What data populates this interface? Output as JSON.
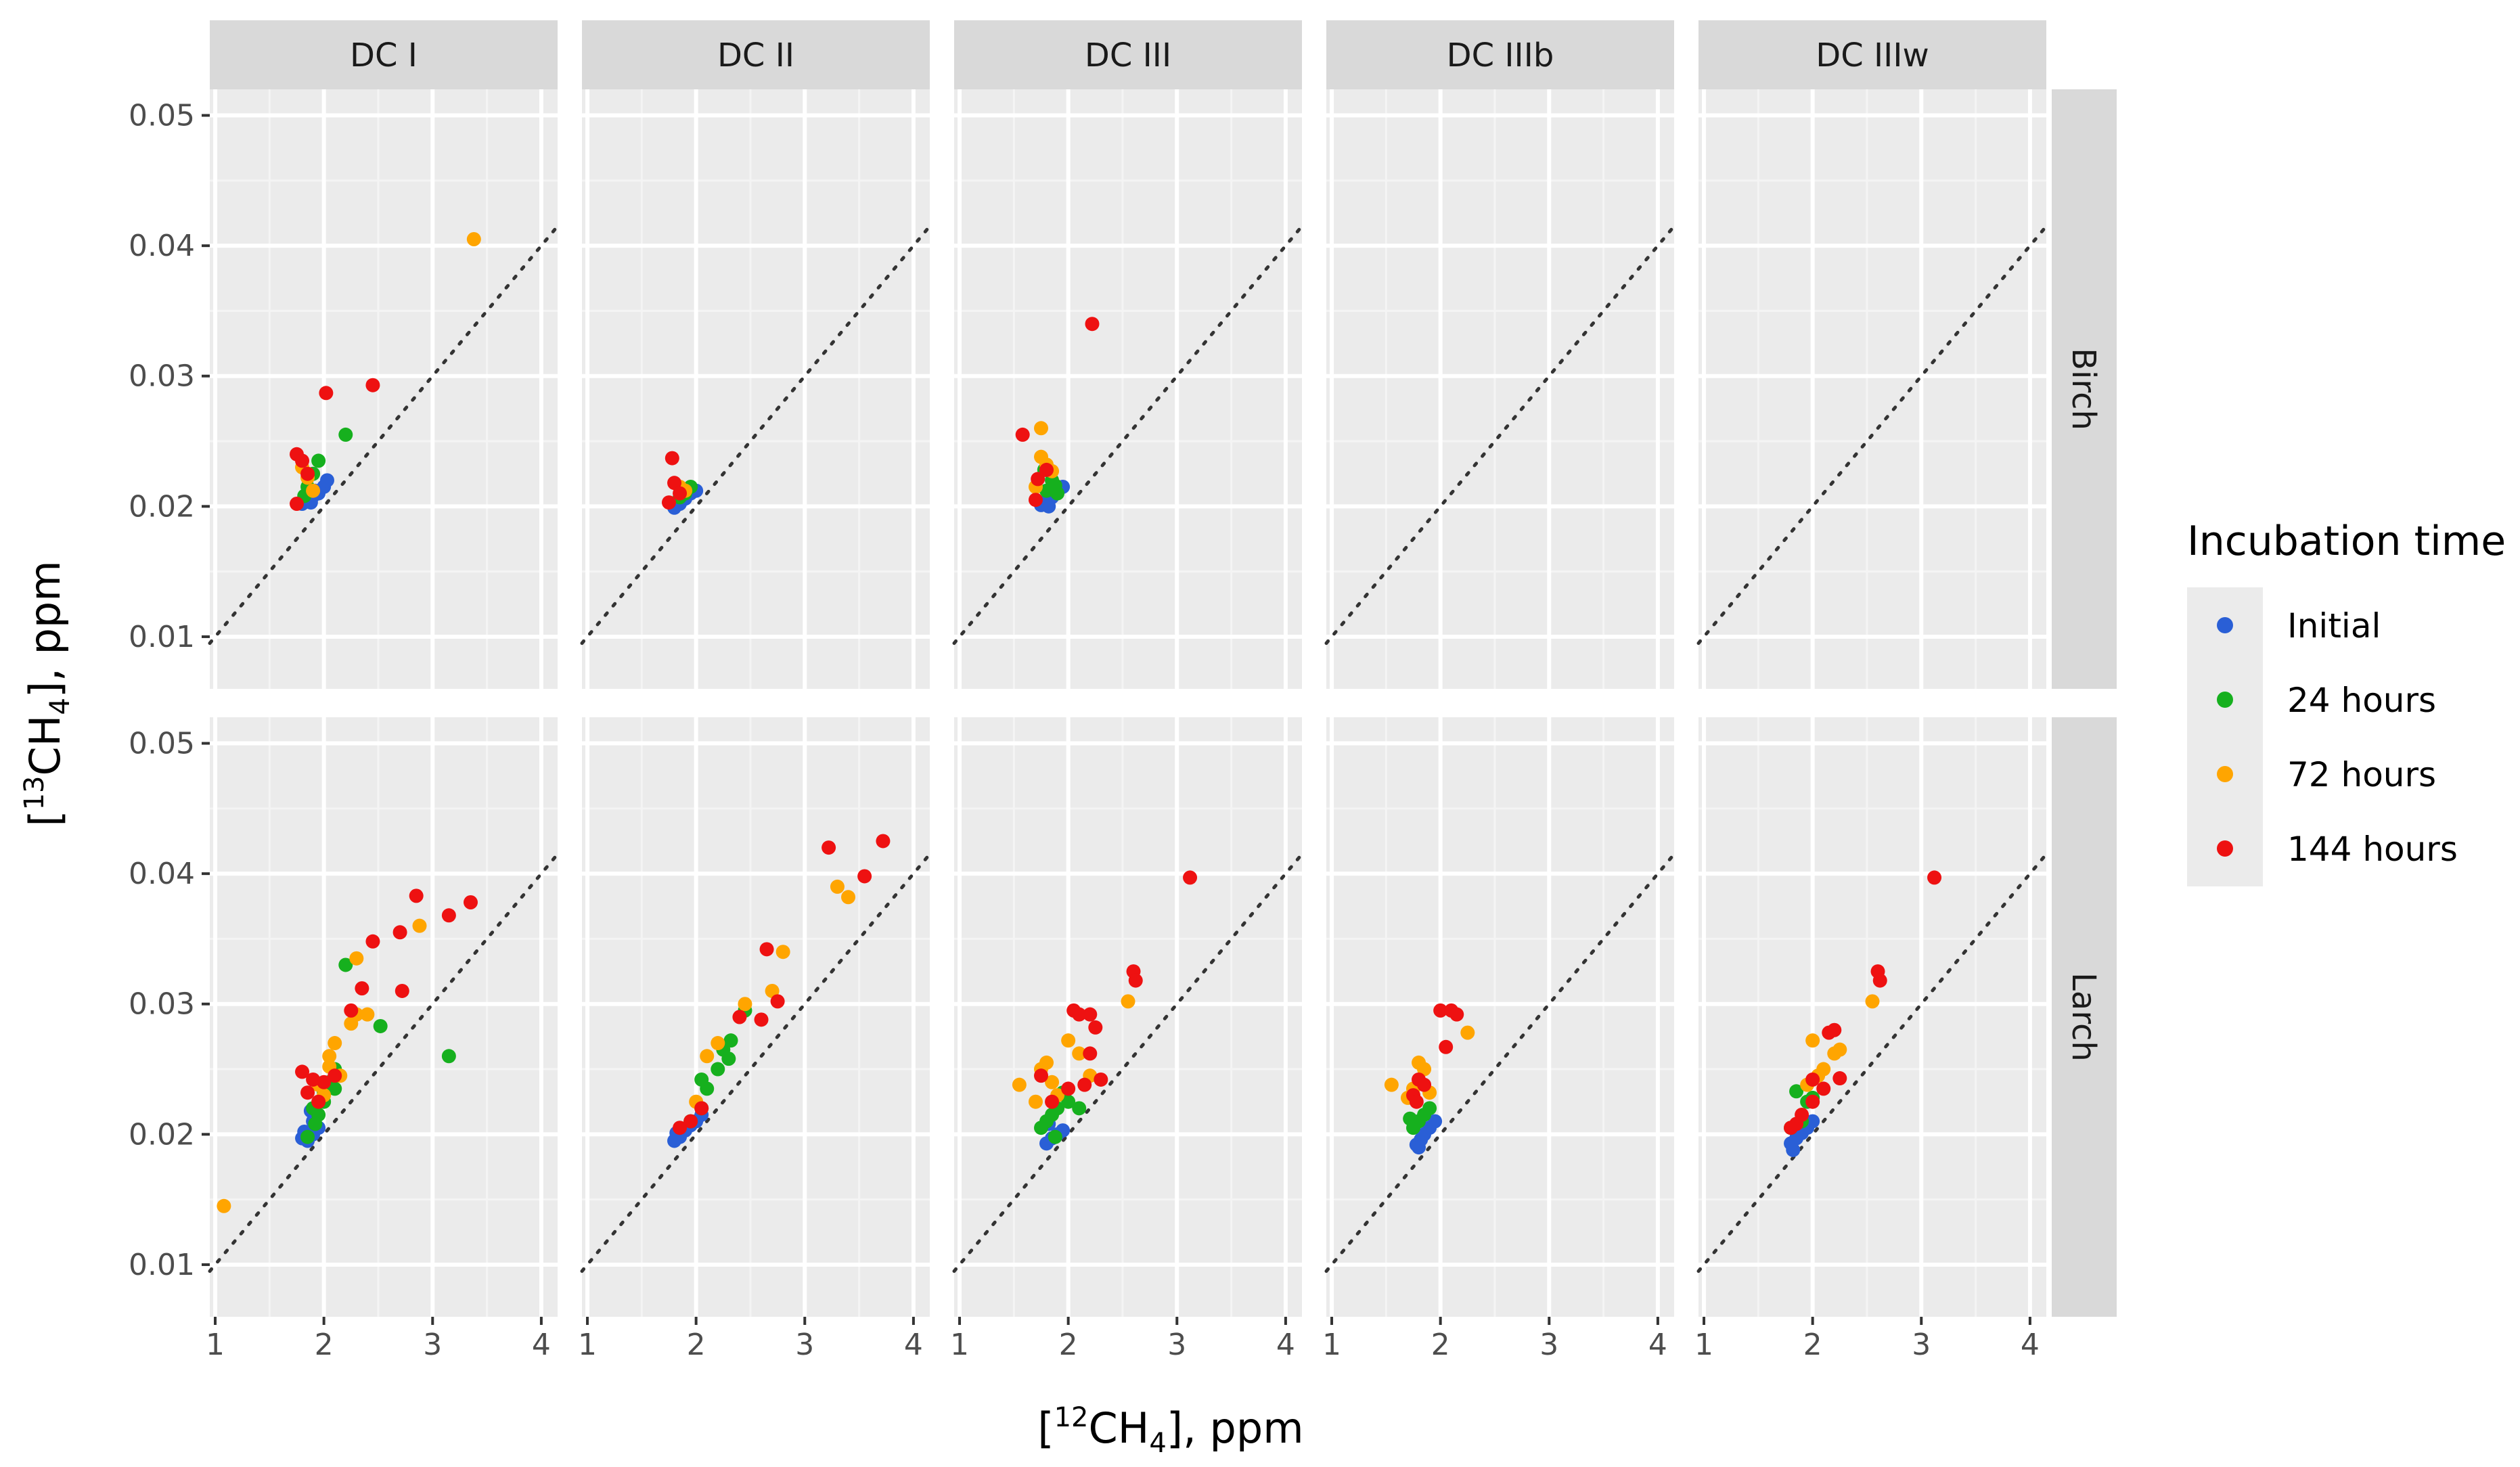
{
  "chart_data": {
    "type": "scatter",
    "facet_columns": [
      "DC I",
      "DC II",
      "DC III",
      "DC IIIb",
      "DC IIIw"
    ],
    "facet_rows": [
      "Birch",
      "Larch"
    ],
    "xlabel_prefix": "[",
    "xlabel_sup": "12",
    "xlabel_main": "CH",
    "xlabel_sub": "4",
    "xlabel_suffix": "], ppm",
    "ylabel_prefix": "[",
    "ylabel_sup": "13",
    "ylabel_main": "CH",
    "ylabel_sub": "4",
    "ylabel_suffix": "], ppm",
    "xlim": [
      0.95,
      4.15
    ],
    "ylim": [
      0.006,
      0.052
    ],
    "x_ticks": [
      1,
      2,
      3,
      4
    ],
    "x_tick_labels": [
      "1",
      "2",
      "3",
      "4"
    ],
    "y_ticks": [
      0.01,
      0.02,
      0.03,
      0.04,
      0.05
    ],
    "y_tick_labels": [
      "0.01",
      "0.02",
      "0.03",
      "0.04",
      "0.05"
    ],
    "reference_line": {
      "slope": 0.01,
      "intercept": 0,
      "style": "dotted"
    },
    "legend": {
      "title": "Incubation time",
      "placement": "right",
      "entries": [
        {
          "key": "initial",
          "label": "Initial",
          "color": "#2a5fd6"
        },
        {
          "key": "h24",
          "label": "24 hours",
          "color": "#16b01e"
        },
        {
          "key": "h72",
          "label": "72 hours",
          "color": "#ffa500"
        },
        {
          "key": "h144",
          "label": "144 hours",
          "color": "#ee1111"
        }
      ]
    },
    "panels": [
      {
        "column": "DC I",
        "row": "Birch",
        "series": {
          "initial": [
            [
              1.8,
              0.0202
            ],
            [
              1.85,
              0.0205
            ],
            [
              1.9,
              0.0208
            ],
            [
              1.95,
              0.021
            ],
            [
              2.0,
              0.0215
            ],
            [
              1.88,
              0.0203
            ],
            [
              1.92,
              0.0212
            ],
            [
              2.03,
              0.022
            ]
          ],
          "h24": [
            [
              1.85,
              0.0215
            ],
            [
              1.9,
              0.0225
            ],
            [
              1.95,
              0.0235
            ],
            [
              2.2,
              0.0255
            ],
            [
              1.82,
              0.0208
            ]
          ],
          "h72": [
            [
              1.8,
              0.023
            ],
            [
              1.85,
              0.0222
            ],
            [
              3.38,
              0.0405
            ],
            [
              1.9,
              0.0212
            ]
          ],
          "h144": [
            [
              1.75,
              0.024
            ],
            [
              1.8,
              0.0235
            ],
            [
              1.85,
              0.0225
            ],
            [
              2.02,
              0.0287
            ],
            [
              2.45,
              0.0293
            ],
            [
              1.75,
              0.0202
            ]
          ]
        }
      },
      {
        "column": "DC II",
        "row": "Birch",
        "series": {
          "initial": [
            [
              1.8,
              0.0199
            ],
            [
              1.85,
              0.0202
            ],
            [
              1.9,
              0.0206
            ],
            [
              1.95,
              0.021
            ],
            [
              2.0,
              0.0212
            ]
          ],
          "h24": [
            [
              1.9,
              0.021
            ],
            [
              1.95,
              0.0215
            ],
            [
              1.85,
              0.0207
            ]
          ],
          "h72": [
            [
              1.85,
              0.0215
            ],
            [
              1.9,
              0.0212
            ]
          ],
          "h144": [
            [
              1.78,
              0.0237
            ],
            [
              1.75,
              0.0203
            ],
            [
              1.8,
              0.0218
            ],
            [
              1.85,
              0.021
            ]
          ]
        }
      },
      {
        "column": "DC III",
        "row": "Birch",
        "series": {
          "initial": [
            [
              1.75,
              0.0201
            ],
            [
              1.8,
              0.0204
            ],
            [
              1.85,
              0.0207
            ],
            [
              1.9,
              0.0212
            ],
            [
              1.95,
              0.0215
            ],
            [
              1.82,
              0.02
            ]
          ],
          "h24": [
            [
              1.8,
              0.0212
            ],
            [
              1.85,
              0.022
            ],
            [
              1.9,
              0.021
            ],
            [
              1.78,
              0.0228
            ],
            [
              1.88,
              0.0216
            ]
          ],
          "h72": [
            [
              1.75,
              0.026
            ],
            [
              1.75,
              0.0238
            ],
            [
              1.8,
              0.0232
            ],
            [
              1.7,
              0.0215
            ],
            [
              1.85,
              0.0227
            ]
          ],
          "h144": [
            [
              1.58,
              0.0255
            ],
            [
              2.22,
              0.034
            ],
            [
              1.72,
              0.0221
            ],
            [
              1.8,
              0.0228
            ],
            [
              1.7,
              0.0205
            ]
          ]
        }
      },
      {
        "column": "DC IIIb",
        "row": "Birch",
        "series": {
          "initial": [],
          "h24": [],
          "h72": [],
          "h144": []
        }
      },
      {
        "column": "DC IIIw",
        "row": "Birch",
        "series": {
          "initial": [],
          "h24": [],
          "h72": [],
          "h144": []
        }
      },
      {
        "column": "DC I",
        "row": "Larch",
        "series": {
          "initial": [
            [
              1.8,
              0.0197
            ],
            [
              1.85,
              0.0195
            ],
            [
              1.9,
              0.02
            ],
            [
              1.95,
              0.0205
            ],
            [
              1.88,
              0.0218
            ],
            [
              1.82,
              0.0202
            ],
            [
              1.9,
              0.021
            ]
          ],
          "h24": [
            [
              1.85,
              0.0198
            ],
            [
              1.95,
              0.0215
            ],
            [
              2.0,
              0.0225
            ],
            [
              2.05,
              0.024
            ],
            [
              2.1,
              0.025
            ],
            [
              2.2,
              0.033
            ],
            [
              2.52,
              0.0283
            ],
            [
              3.15,
              0.026
            ],
            [
              1.9,
              0.022
            ],
            [
              2.0,
              0.0232
            ],
            [
              2.1,
              0.0235
            ],
            [
              1.92,
              0.0208
            ]
          ],
          "h72": [
            [
              1.08,
              0.0145
            ],
            [
              2.05,
              0.026
            ],
            [
              2.1,
              0.027
            ],
            [
              2.15,
              0.0245
            ],
            [
              2.3,
              0.0292
            ],
            [
              2.4,
              0.0292
            ],
            [
              2.3,
              0.0335
            ],
            [
              2.88,
              0.036
            ],
            [
              2.0,
              0.023
            ],
            [
              1.95,
              0.0238
            ],
            [
              2.05,
              0.0252
            ],
            [
              2.25,
              0.0285
            ]
          ],
          "h144": [
            [
              1.8,
              0.0248
            ],
            [
              1.9,
              0.0242
            ],
            [
              2.0,
              0.024
            ],
            [
              2.1,
              0.0245
            ],
            [
              2.25,
              0.0295
            ],
            [
              2.35,
              0.0312
            ],
            [
              2.45,
              0.0348
            ],
            [
              2.7,
              0.0355
            ],
            [
              2.72,
              0.031
            ],
            [
              2.85,
              0.0383
            ],
            [
              3.15,
              0.0368
            ],
            [
              3.35,
              0.0378
            ],
            [
              1.85,
              0.0232
            ],
            [
              1.95,
              0.0225
            ]
          ]
        }
      },
      {
        "column": "DC II",
        "row": "Larch",
        "series": {
          "initial": [
            [
              1.8,
              0.0195
            ],
            [
              1.85,
              0.0198
            ],
            [
              1.9,
              0.0203
            ],
            [
              1.95,
              0.0207
            ],
            [
              2.0,
              0.021
            ],
            [
              2.05,
              0.0215
            ],
            [
              1.82,
              0.0201
            ]
          ],
          "h24": [
            [
              1.95,
              0.021
            ],
            [
              2.05,
              0.022
            ],
            [
              2.1,
              0.0235
            ],
            [
              2.2,
              0.025
            ],
            [
              2.3,
              0.0258
            ],
            [
              2.32,
              0.0272
            ],
            [
              2.45,
              0.0295
            ],
            [
              2.05,
              0.0242
            ],
            [
              2.25,
              0.0265
            ]
          ],
          "h72": [
            [
              2.1,
              0.026
            ],
            [
              2.45,
              0.03
            ],
            [
              2.7,
              0.031
            ],
            [
              2.8,
              0.034
            ],
            [
              3.3,
              0.039
            ],
            [
              3.4,
              0.0382
            ],
            [
              2.0,
              0.0225
            ],
            [
              2.2,
              0.027
            ]
          ],
          "h144": [
            [
              1.85,
              0.0205
            ],
            [
              1.95,
              0.021
            ],
            [
              2.05,
              0.022
            ],
            [
              2.4,
              0.029
            ],
            [
              2.6,
              0.0288
            ],
            [
              2.65,
              0.0342
            ],
            [
              3.22,
              0.042
            ],
            [
              3.55,
              0.0398
            ],
            [
              3.72,
              0.0425
            ],
            [
              2.75,
              0.0302
            ]
          ]
        }
      },
      {
        "column": "DC III",
        "row": "Larch",
        "series": {
          "initial": [
            [
              1.8,
              0.0193
            ],
            [
              1.85,
              0.0197
            ],
            [
              1.9,
              0.02
            ],
            [
              1.95,
              0.0203
            ],
            [
              1.82,
              0.0208
            ]
          ],
          "h24": [
            [
              1.75,
              0.0205
            ],
            [
              1.8,
              0.021
            ],
            [
              1.85,
              0.0215
            ],
            [
              1.9,
              0.022
            ],
            [
              2.0,
              0.0225
            ],
            [
              2.1,
              0.022
            ],
            [
              1.95,
              0.0232
            ],
            [
              1.88,
              0.0198
            ]
          ],
          "h72": [
            [
              1.55,
              0.0238
            ],
            [
              1.75,
              0.025
            ],
            [
              1.8,
              0.0255
            ],
            [
              1.85,
              0.024
            ],
            [
              1.9,
              0.023
            ],
            [
              2.0,
              0.0272
            ],
            [
              2.1,
              0.0262
            ],
            [
              2.55,
              0.0302
            ],
            [
              2.2,
              0.0245
            ],
            [
              1.7,
              0.0225
            ]
          ],
          "h144": [
            [
              1.75,
              0.0245
            ],
            [
              1.85,
              0.0225
            ],
            [
              2.0,
              0.0235
            ],
            [
              2.05,
              0.0295
            ],
            [
              2.1,
              0.0292
            ],
            [
              2.2,
              0.0292
            ],
            [
              2.25,
              0.0282
            ],
            [
              2.2,
              0.0262
            ],
            [
              2.3,
              0.0242
            ],
            [
              2.6,
              0.0325
            ],
            [
              2.62,
              0.0318
            ],
            [
              3.12,
              0.0397
            ],
            [
              2.15,
              0.0238
            ]
          ]
        }
      },
      {
        "column": "DC IIIb",
        "row": "Larch",
        "series": {
          "initial": [
            [
              1.78,
              0.0192
            ],
            [
              1.82,
              0.0196
            ],
            [
              1.85,
              0.02
            ],
            [
              1.9,
              0.0205
            ],
            [
              1.95,
              0.021
            ],
            [
              1.8,
              0.019
            ]
          ],
          "h24": [
            [
              1.75,
              0.0205
            ],
            [
              1.8,
              0.021
            ],
            [
              1.85,
              0.0215
            ],
            [
              1.9,
              0.022
            ],
            [
              1.72,
              0.0212
            ]
          ],
          "h72": [
            [
              1.55,
              0.0238
            ],
            [
              1.75,
              0.0235
            ],
            [
              1.8,
              0.0255
            ],
            [
              1.85,
              0.025
            ],
            [
              1.9,
              0.0232
            ],
            [
              2.25,
              0.0278
            ],
            [
              1.7,
              0.0228
            ]
          ],
          "h144": [
            [
              1.75,
              0.023
            ],
            [
              1.8,
              0.0242
            ],
            [
              1.85,
              0.0238
            ],
            [
              2.0,
              0.0295
            ],
            [
              2.1,
              0.0295
            ],
            [
              2.15,
              0.0292
            ],
            [
              2.05,
              0.0267
            ],
            [
              1.78,
              0.0225
            ]
          ]
        }
      },
      {
        "column": "DC IIIw",
        "row": "Larch",
        "series": {
          "initial": [
            [
              1.8,
              0.0193
            ],
            [
              1.85,
              0.0197
            ],
            [
              1.9,
              0.0201
            ],
            [
              1.95,
              0.0205
            ],
            [
              2.0,
              0.021
            ],
            [
              1.82,
              0.0188
            ]
          ],
          "h24": [
            [
              1.85,
              0.0233
            ],
            [
              1.9,
              0.021
            ],
            [
              1.95,
              0.0225
            ],
            [
              2.0,
              0.0228
            ],
            [
              1.8,
              0.0205
            ]
          ],
          "h72": [
            [
              2.0,
              0.0272
            ],
            [
              2.05,
              0.0245
            ],
            [
              2.1,
              0.025
            ],
            [
              2.2,
              0.0262
            ],
            [
              2.55,
              0.0302
            ],
            [
              1.95,
              0.0238
            ],
            [
              2.25,
              0.0265
            ]
          ],
          "h144": [
            [
              1.8,
              0.0205
            ],
            [
              1.9,
              0.0215
            ],
            [
              2.0,
              0.0225
            ],
            [
              2.1,
              0.0235
            ],
            [
              2.15,
              0.0278
            ],
            [
              2.2,
              0.028
            ],
            [
              2.25,
              0.0243
            ],
            [
              2.6,
              0.0325
            ],
            [
              2.62,
              0.0318
            ],
            [
              3.12,
              0.0397
            ],
            [
              2.0,
              0.0242
            ],
            [
              1.85,
              0.0208
            ]
          ]
        }
      }
    ]
  }
}
